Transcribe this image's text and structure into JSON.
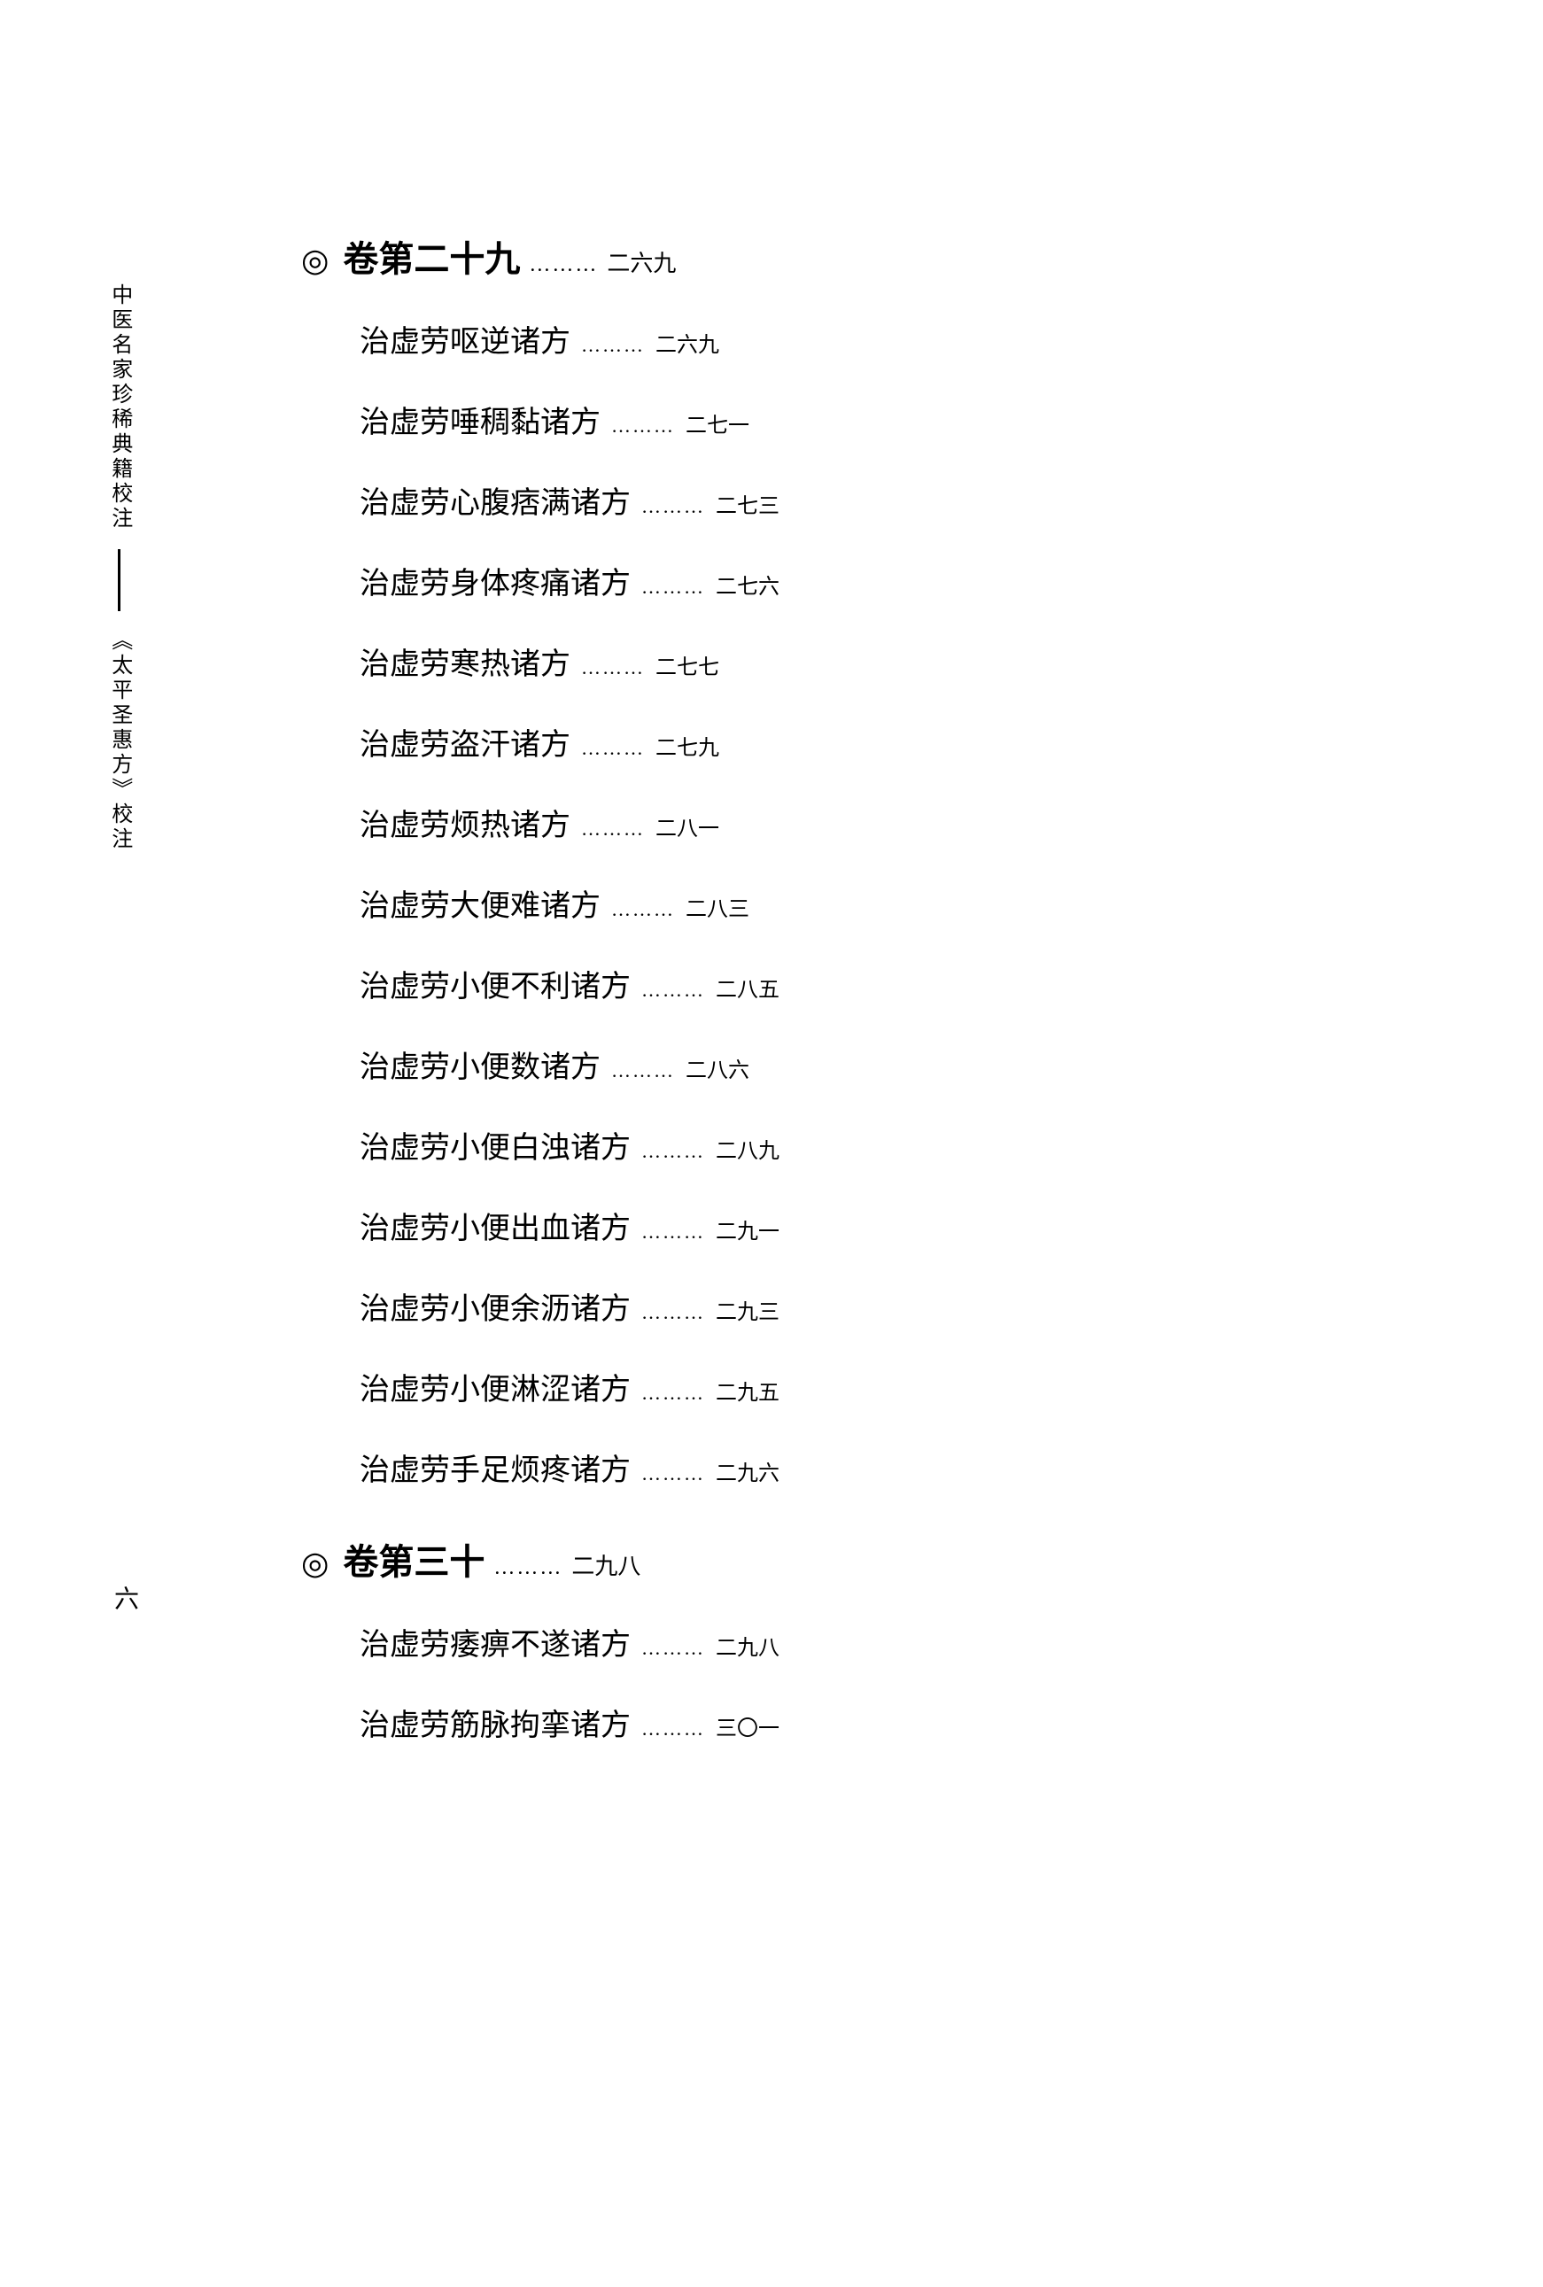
{
  "sidebar": {
    "label_top": "中医名家珍稀典籍校注",
    "label_bottom": "︽太平圣惠方︾校注",
    "page_number": "六"
  },
  "sections": [
    {
      "title": "卷第二十九",
      "page": "二六九",
      "entries": [
        {
          "title": "治虚劳呕逆诸方",
          "page": "二六九"
        },
        {
          "title": "治虚劳唾稠黏诸方",
          "page": "二七一"
        },
        {
          "title": "治虚劳心腹痞满诸方",
          "page": "二七三"
        },
        {
          "title": "治虚劳身体疼痛诸方",
          "page": "二七六"
        },
        {
          "title": "治虚劳寒热诸方",
          "page": "二七七"
        },
        {
          "title": "治虚劳盗汗诸方",
          "page": "二七九"
        },
        {
          "title": "治虚劳烦热诸方",
          "page": "二八一"
        },
        {
          "title": "治虚劳大便难诸方",
          "page": "二八三"
        },
        {
          "title": "治虚劳小便不利诸方",
          "page": "二八五"
        },
        {
          "title": "治虚劳小便数诸方",
          "page": "二八六"
        },
        {
          "title": "治虚劳小便白浊诸方",
          "page": "二八九"
        },
        {
          "title": "治虚劳小便出血诸方",
          "page": "二九一"
        },
        {
          "title": "治虚劳小便余沥诸方",
          "page": "二九三"
        },
        {
          "title": "治虚劳小便淋涩诸方",
          "page": "二九五"
        },
        {
          "title": "治虚劳手足烦疼诸方",
          "page": "二九六"
        }
      ]
    },
    {
      "title": "卷第三十",
      "page": "二九八",
      "entries": [
        {
          "title": "治虚劳痿痹不遂诸方",
          "page": "二九八"
        },
        {
          "title": "治虚劳筋脉拘挛诸方",
          "page": "三〇一"
        }
      ]
    }
  ],
  "dots": "………",
  "bullet": "◎"
}
